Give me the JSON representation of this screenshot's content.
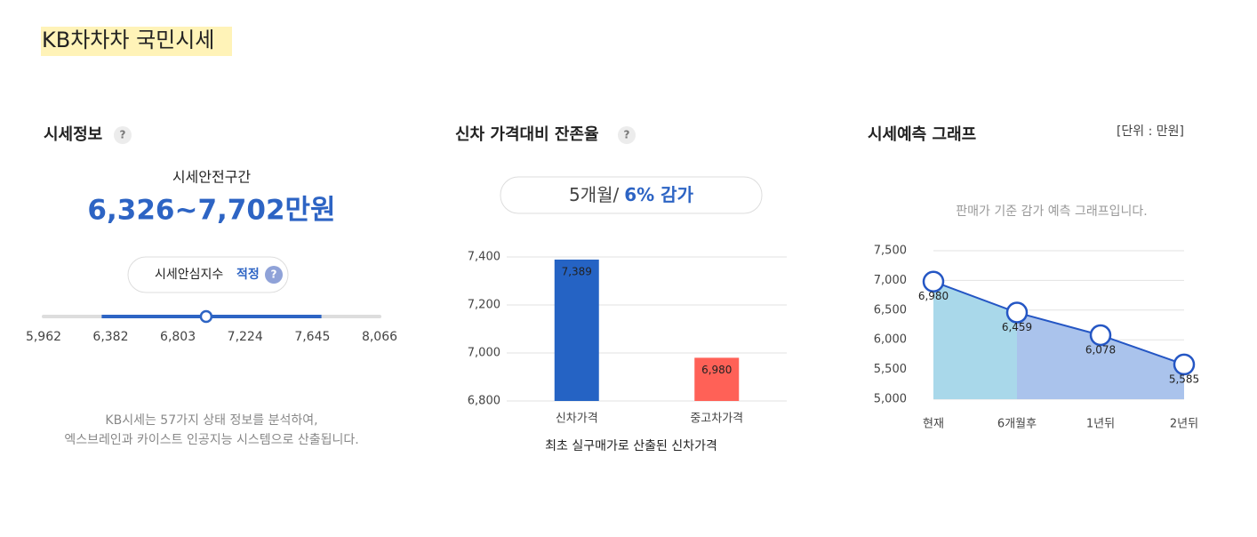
{
  "header": {
    "title": "KB차차차 국민시세"
  },
  "price_info": {
    "title": "시세정보",
    "help": "?",
    "range_label": "시세안전구간",
    "range_text": "6,326~7,702만원",
    "index_label": "시세안심지수",
    "index_value": "적정",
    "index_help": "?",
    "slider": {
      "xlim": [
        5962,
        8066
      ],
      "ticks": [
        {
          "value": 5962,
          "label": "5,962"
        },
        {
          "value": 6382,
          "label": "6,382"
        },
        {
          "value": 6803,
          "label": "6,803"
        },
        {
          "value": 7224,
          "label": "7,224"
        },
        {
          "value": 7645,
          "label": "7,645"
        },
        {
          "value": 8066,
          "label": "8,066"
        }
      ],
      "range": [
        6326,
        7702
      ],
      "marker": 6980,
      "color": "#2d64c4"
    },
    "note_lines": [
      "KB시세는 57가지 상태 정보를 분석하여,",
      "엑스브레인과 카이스트 인공지능 시스템으로 산출됩니다."
    ]
  },
  "retention": {
    "title": "신차 가격대비 잔존율",
    "help": "?",
    "badge_period": "5개월/",
    "badge_value": "6% 감가",
    "chart": {
      "type": "bar",
      "categories": [
        "신차가격",
        "중고차가격"
      ],
      "values": [
        7389,
        6980
      ],
      "value_labels": [
        "7,389",
        "6,980"
      ],
      "colors": [
        "#2563c4",
        "#ff6157"
      ],
      "ylim": [
        6800,
        7400
      ],
      "yticks": [
        {
          "value": 6800,
          "label": "6,800"
        },
        {
          "value": 7000,
          "label": "7,000"
        },
        {
          "value": 7200,
          "label": "7,200"
        },
        {
          "value": 7400,
          "label": "7,400"
        }
      ],
      "grid": true,
      "caption": "최초 실구매가로 산출된 신차가격"
    }
  },
  "forecast": {
    "title": "시세예측 그래프",
    "unit": "[단위 : 만원]",
    "subtitle": "판매가 기준 감가 예측 그래프입니다.",
    "chart": {
      "type": "line",
      "categories": [
        "현재",
        "6개월후",
        "1년뒤",
        "2년뒤"
      ],
      "values": [
        6980,
        6459,
        6078,
        5585
      ],
      "value_labels": [
        "6,980",
        "6,459",
        "6,078",
        "5,585"
      ],
      "color": "#2456c4",
      "area_colors": [
        "#a9d8ea",
        "#aac3ec"
      ],
      "ylim": [
        5000,
        7500
      ],
      "yticks": [
        {
          "value": 5000,
          "label": "5,000"
        },
        {
          "value": 5500,
          "label": "5,500"
        },
        {
          "value": 6000,
          "label": "6,000"
        },
        {
          "value": 6500,
          "label": "6,500"
        },
        {
          "value": 7000,
          "label": "7,000"
        },
        {
          "value": 7500,
          "label": "7,500"
        }
      ],
      "grid": true
    }
  }
}
